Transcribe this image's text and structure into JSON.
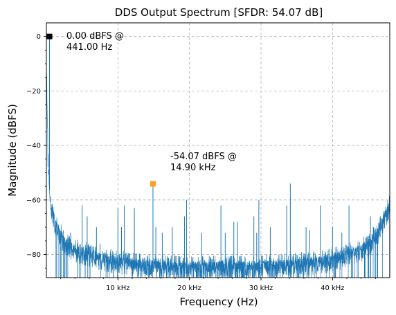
{
  "chart_data": {
    "type": "line",
    "title": "DDS Output Spectrum [SFDR: 54.07 dB]",
    "xlabel": "Frequency (Hz)",
    "ylabel": "Magnitude (dBFS)",
    "xlim": [
      0,
      48000
    ],
    "ylim": [
      -88.5,
      5
    ],
    "grid": true,
    "x_ticks": [
      {
        "value": 10000,
        "label": "10 kHz"
      },
      {
        "value": 20000,
        "label": "20 kHz"
      },
      {
        "value": 30000,
        "label": "30 kHz"
      },
      {
        "value": 40000,
        "label": "40 kHz"
      }
    ],
    "y_ticks": [
      {
        "value": 0,
        "label": "0"
      },
      {
        "value": -20,
        "label": "−20"
      },
      {
        "value": -40,
        "label": "−40"
      },
      {
        "value": -60,
        "label": "−60"
      },
      {
        "value": -80,
        "label": "−80"
      }
    ],
    "series": [
      {
        "color": "#1f77b4",
        "noise_floor": [
          [
            0,
            -5
          ],
          [
            220,
            -45
          ],
          [
            600,
            -62
          ],
          [
            1500,
            -70
          ],
          [
            2500,
            -75
          ],
          [
            4000,
            -78
          ],
          [
            6000,
            -80
          ],
          [
            9000,
            -82
          ],
          [
            12000,
            -83
          ],
          [
            17000,
            -84
          ],
          [
            24000,
            -84.5
          ],
          [
            31000,
            -84
          ],
          [
            36000,
            -83
          ],
          [
            39000,
            -82
          ],
          [
            42000,
            -80
          ],
          [
            44000,
            -78
          ],
          [
            45500,
            -75
          ],
          [
            46500,
            -71
          ],
          [
            47300,
            -66
          ],
          [
            48000,
            -62
          ]
        ],
        "spurs": [
          [
            441,
            0
          ],
          [
            3400,
            -72
          ],
          [
            5000,
            -62
          ],
          [
            5700,
            -66
          ],
          [
            7000,
            -70
          ],
          [
            7500,
            -76
          ],
          [
            10000,
            -63
          ],
          [
            10500,
            -70
          ],
          [
            10900,
            -62
          ],
          [
            12300,
            -63
          ],
          [
            14900,
            -54.07
          ],
          [
            15300,
            -70
          ],
          [
            16200,
            -72
          ],
          [
            17600,
            -70
          ],
          [
            19300,
            -66
          ],
          [
            19600,
            -60
          ],
          [
            21700,
            -72
          ],
          [
            24400,
            -62
          ],
          [
            25000,
            -72
          ],
          [
            26200,
            -68
          ],
          [
            26700,
            -68
          ],
          [
            29000,
            -66
          ],
          [
            29400,
            -72
          ],
          [
            29700,
            -60
          ],
          [
            31300,
            -70
          ],
          [
            33600,
            -62
          ],
          [
            34100,
            -54
          ],
          [
            36300,
            -70
          ],
          [
            36800,
            -71
          ],
          [
            38300,
            -62
          ],
          [
            40000,
            -70
          ],
          [
            41300,
            -72
          ],
          [
            42300,
            -62
          ],
          [
            45300,
            -66
          ],
          [
            45700,
            -70
          ],
          [
            46500,
            -72
          ]
        ]
      }
    ],
    "markers": [
      {
        "x": 441,
        "y": 0,
        "color": "#000000",
        "label_line1": "0.00 dBFS @",
        "label_line2": "441.00 Hz"
      },
      {
        "x": 14900,
        "y": -54.07,
        "color": "#ff9f1c",
        "label_line1": "-54.07 dBFS @",
        "label_line2": "14.90 kHz"
      }
    ]
  }
}
